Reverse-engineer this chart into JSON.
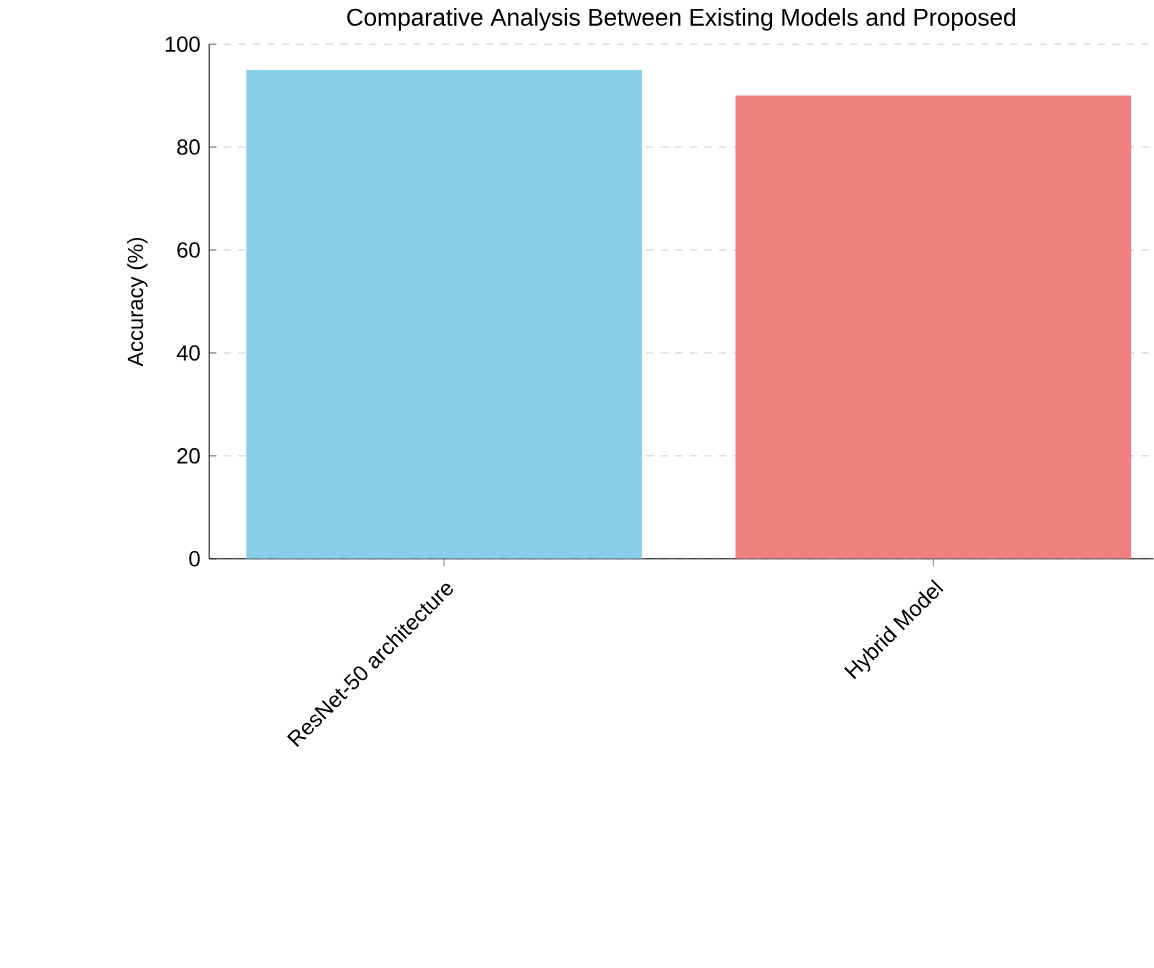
{
  "chart_data": {
    "type": "bar",
    "title": "Comparative Analysis Between Existing Models and Proposed",
    "ylabel": "Accuracy (%)",
    "categories": [
      "ResNet-50 architecture",
      "Hybrid Model"
    ],
    "values": [
      95,
      90
    ],
    "colors": [
      "#87ceeb",
      "#f08080"
    ],
    "ylim": [
      0,
      100
    ],
    "yticks": [
      0,
      20,
      40,
      60,
      80,
      100
    ],
    "grid": "y"
  }
}
